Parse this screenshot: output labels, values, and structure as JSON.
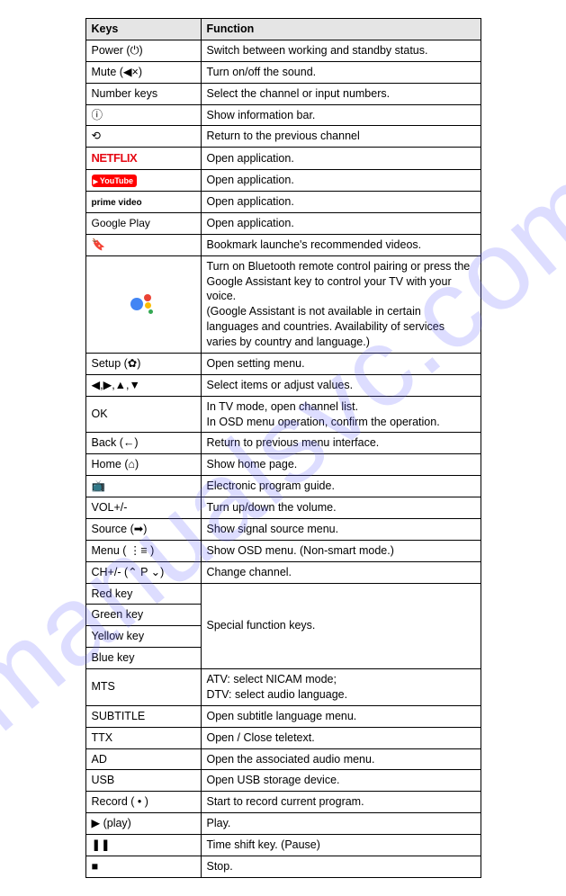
{
  "watermark_text": "manualsvc.com",
  "header": {
    "keys": "Keys",
    "function": "Function"
  },
  "rows": [
    {
      "key_text": "Power (⏻)",
      "func": "Switch between working and standby status."
    },
    {
      "key_text": "Mute (◀×)",
      "func": "Turn on/off the sound."
    },
    {
      "key_text": "Number keys",
      "func": "Select the channel or input numbers."
    },
    {
      "key_text": "ⓘ",
      "func": "Show information bar."
    },
    {
      "key_text": "⟲",
      "func": "Return to the previous channel"
    },
    {
      "brand": "netflix",
      "key_text": "NETFLIX",
      "func": "Open application."
    },
    {
      "brand": "youtube",
      "key_text": "YouTube",
      "func": "Open application."
    },
    {
      "brand": "prime",
      "key_text": "prime video",
      "func": "Open application."
    },
    {
      "brand": "gplay",
      "key_text": "Google Play",
      "func": "Open application."
    },
    {
      "key_text": "🔖",
      "func": "Bookmark launche's recommended videos."
    },
    {
      "assistant": true,
      "func": "Turn on Bluetooth remote control pairing or press the Google Assistant key to control your TV with your voice.\n(Google Assistant is not available in certain languages and countries. Availability of services varies by country and language.)"
    },
    {
      "key_text": "Setup (✿)",
      "func": "Open setting menu."
    },
    {
      "key_text": "◀,▶,▲,▼",
      "func": "Select items or adjust values."
    },
    {
      "key_text": "OK",
      "func": "In TV mode, open channel list.\nIn OSD menu operation, confirm the operation."
    },
    {
      "key_text": "Back (←)",
      "func": " Return to previous menu interface."
    },
    {
      "key_text": "Home (⌂)",
      "func": "Show home page."
    },
    {
      "key_text": "📺",
      "func": " Electronic program guide."
    },
    {
      "key_text": "VOL+/-",
      "func": "Turn up/down the volume."
    },
    {
      "key_text": "Source (➡)",
      "func": "Show signal source menu."
    },
    {
      "key_text": "Menu ( ⋮≡ )",
      "func": " Show OSD menu. (Non-smart mode.)"
    },
    {
      "key_text": "CH+/- (⌃ P ⌄)",
      "func": "Change channel."
    },
    {
      "key_text": "Red key",
      "func": "Special function keys.",
      "rowspan_start": 4
    },
    {
      "key_text": "Green key",
      "skip_func": true
    },
    {
      "key_text": "Yellow key",
      "skip_func": true
    },
    {
      "key_text": "Blue key",
      "skip_func": true
    },
    {
      "key_text": "MTS",
      "func": "ATV: select NICAM mode;\nDTV: select audio language."
    },
    {
      "key_text": "SUBTITLE",
      "func": "Open subtitle language menu."
    },
    {
      "key_text": "TTX",
      "func": "Open / Close teletext."
    },
    {
      "key_text": "AD",
      "func": "Open the associated audio menu."
    },
    {
      "key_text": "USB",
      "func": "Open USB storage device."
    },
    {
      "key_text": "Record ( • )",
      "func": "Start to record current program."
    },
    {
      "key_text": "▶ (play)",
      "func": "Play."
    },
    {
      "key_text": "❚❚",
      "func": "Time shift key. (Pause)"
    },
    {
      "key_text": "■",
      "func": "Stop."
    }
  ]
}
